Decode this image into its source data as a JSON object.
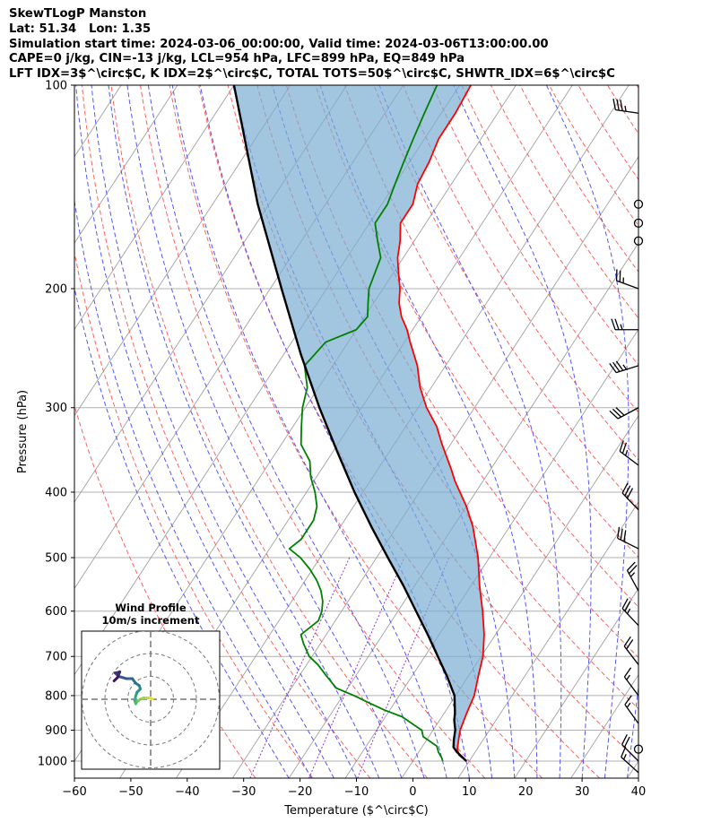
{
  "header": {
    "line1": "SkewTLogP Manston",
    "line2": "Lat: 51.34   Lon: 1.35",
    "line3": "Simulation start time: 2024-03-06_00:00:00, Valid time: 2024-03-06T13:00:00.00",
    "line4": "CAPE=0 j/kg, CIN=-13 j/kg, LCL=954 hPa, LFC=899 hPa, EQ=849 hPa",
    "line5": "LFT IDX=3$^\\circ$C, K IDX=2$^\\circ$C, TOTAL TOTS=50$^\\circ$C, SHWTR_IDX=6$^\\circ$C"
  },
  "chart_data": {
    "type": "line",
    "title": "SkewTLogP Manston",
    "xlabel": "Temperature ($^\\circ$C)",
    "ylabel": "Pressure (hPa)",
    "xlim": [
      -60,
      40
    ],
    "ylim": [
      1050,
      100
    ],
    "skew_offset_c": 34,
    "x_ticks": [
      "−60",
      "−50",
      "−40",
      "−30",
      "−20",
      "−10",
      "0",
      "10",
      "20",
      "30",
      "40"
    ],
    "x_tick_values": [
      -60,
      -50,
      -40,
      -30,
      -20,
      -10,
      0,
      10,
      20,
      30,
      40
    ],
    "y_ticks": [
      "1000",
      "900",
      "800",
      "700",
      "600",
      "500",
      "400",
      "300",
      "200",
      "100"
    ],
    "y_tick_values": [
      1000,
      900,
      800,
      700,
      600,
      500,
      400,
      300,
      200,
      100
    ],
    "colors": {
      "temperature": "#ff0000",
      "dewpoint": "#008000",
      "parcel": "#000000",
      "cape_fill": "#7aaed3",
      "dry_adiabat": "#ff6060",
      "moist_adiabat": "#5555ff",
      "mixing_ratio": "#9933cc",
      "isotherm": "#a0a0a0",
      "grid": "#b0b0b0"
    },
    "series": [
      {
        "name": "Temperature",
        "points": [
          [
            1000,
            9.5
          ],
          [
            980,
            7.5
          ],
          [
            960,
            6.5
          ],
          [
            925,
            5.5
          ],
          [
            900,
            4.8
          ],
          [
            850,
            4.0
          ],
          [
            800,
            3.3
          ],
          [
            750,
            1.8
          ],
          [
            700,
            0.3
          ],
          [
            650,
            -2.0
          ],
          [
            600,
            -5.0
          ],
          [
            550,
            -8.5
          ],
          [
            500,
            -12.0
          ],
          [
            450,
            -16.5
          ],
          [
            420,
            -20.0
          ],
          [
            400,
            -22.8
          ],
          [
            385,
            -25.0
          ],
          [
            370,
            -27.0
          ],
          [
            340,
            -31.5
          ],
          [
            320,
            -34.5
          ],
          [
            300,
            -38.5
          ],
          [
            280,
            -42.0
          ],
          [
            260,
            -45.0
          ],
          [
            240,
            -49.0
          ],
          [
            230,
            -51.0
          ],
          [
            220,
            -53.5
          ],
          [
            210,
            -55.5
          ],
          [
            200,
            -57.0
          ],
          [
            190,
            -59.0
          ],
          [
            180,
            -61.0
          ],
          [
            170,
            -62.5
          ],
          [
            160,
            -64.5
          ],
          [
            150,
            -64.5
          ],
          [
            140,
            -66.0
          ],
          [
            130,
            -66.5
          ],
          [
            120,
            -67.5
          ],
          [
            110,
            -67.5
          ],
          [
            100,
            -68.0
          ]
        ]
      },
      {
        "name": "Dewpoint",
        "points": [
          [
            1000,
            5.3
          ],
          [
            990,
            4.8
          ],
          [
            970,
            3.5
          ],
          [
            950,
            2.5
          ],
          [
            920,
            -1.0
          ],
          [
            900,
            -2.0
          ],
          [
            880,
            -4.5
          ],
          [
            860,
            -7.0
          ],
          [
            840,
            -11.0
          ],
          [
            820,
            -14.5
          ],
          [
            800,
            -18.0
          ],
          [
            780,
            -22.0
          ],
          [
            750,
            -25.0
          ],
          [
            720,
            -28.0
          ],
          [
            700,
            -30.5
          ],
          [
            670,
            -33.0
          ],
          [
            650,
            -34.5
          ],
          [
            620,
            -33.0
          ],
          [
            600,
            -33.5
          ],
          [
            580,
            -34.5
          ],
          [
            560,
            -36.0
          ],
          [
            540,
            -38.0
          ],
          [
            520,
            -40.5
          ],
          [
            500,
            -43.5
          ],
          [
            485,
            -46.5
          ],
          [
            470,
            -45.5
          ],
          [
            440,
            -45.5
          ],
          [
            420,
            -46.5
          ],
          [
            400,
            -48.5
          ],
          [
            380,
            -51.0
          ],
          [
            360,
            -53.0
          ],
          [
            340,
            -56.5
          ],
          [
            320,
            -58.5
          ],
          [
            300,
            -60.5
          ],
          [
            280,
            -62.0
          ],
          [
            260,
            -65.0
          ],
          [
            250,
            -64.5
          ],
          [
            240,
            -64.0
          ],
          [
            230,
            -60.0
          ],
          [
            220,
            -59.5
          ],
          [
            210,
            -61.0
          ],
          [
            200,
            -62.5
          ],
          [
            180,
            -64.0
          ],
          [
            170,
            -66.5
          ],
          [
            160,
            -69.0
          ],
          [
            150,
            -69.0
          ],
          [
            140,
            -70.0
          ],
          [
            130,
            -71.0
          ],
          [
            120,
            -72.0
          ],
          [
            110,
            -73.0
          ],
          [
            100,
            -74.0
          ]
        ]
      },
      {
        "name": "Parcel",
        "points": [
          [
            1000,
            9.5
          ],
          [
            970,
            6.8
          ],
          [
            954,
            5.6
          ],
          [
            930,
            4.8
          ],
          [
            899,
            3.9
          ],
          [
            870,
            2.6
          ],
          [
            849,
            1.9
          ],
          [
            800,
            -0.2
          ],
          [
            750,
            -3.7
          ],
          [
            700,
            -7.7
          ],
          [
            650,
            -12.0
          ],
          [
            600,
            -16.8
          ],
          [
            550,
            -22.0
          ],
          [
            500,
            -28.0
          ],
          [
            450,
            -34.5
          ],
          [
            400,
            -41.5
          ],
          [
            350,
            -49.0
          ],
          [
            300,
            -57.5
          ],
          [
            250,
            -67.0
          ],
          [
            200,
            -78.0
          ],
          [
            150,
            -92.0
          ],
          [
            100,
            -110.0
          ]
        ]
      }
    ],
    "hodograph": {
      "title": "Wind Profile",
      "subtitle": "10m/s increment",
      "ring_step_ms": 10,
      "points_uv": [
        [
          0.8,
          0.2
        ],
        [
          0.0,
          0.5
        ],
        [
          -1.5,
          0.6
        ],
        [
          -3.0,
          0.6
        ],
        [
          -4.5,
          0.0
        ],
        [
          -6.0,
          -1.0
        ],
        [
          -6.5,
          -2.0
        ],
        [
          -7.0,
          -0.5
        ],
        [
          -6.5,
          1.5
        ],
        [
          -6.0,
          3.0
        ],
        [
          -4.5,
          4.5
        ],
        [
          -5.0,
          6.0
        ],
        [
          -6.5,
          7.0
        ],
        [
          -8.0,
          9.0
        ],
        [
          -10.5,
          9.0
        ],
        [
          -14.0,
          10.0
        ],
        [
          -15.5,
          11.5
        ],
        [
          -13.5,
          12.0
        ],
        [
          -14.5,
          9.5
        ],
        [
          -16.0,
          8.0
        ]
      ]
    },
    "wind_barbs": [
      {
        "p": 110,
        "u": -35,
        "v": 5
      },
      {
        "p": 150,
        "u": 0,
        "v": 0
      },
      {
        "p": 160,
        "u": 0,
        "v": 0
      },
      {
        "p": 170,
        "u": 0,
        "v": 0
      },
      {
        "p": 200,
        "u": -22,
        "v": 8
      },
      {
        "p": 230,
        "u": -24,
        "v": 0
      },
      {
        "p": 260,
        "u": -32,
        "v": -10
      },
      {
        "p": 300,
        "u": -28,
        "v": -15
      },
      {
        "p": 365,
        "u": -20,
        "v": 15
      },
      {
        "p": 425,
        "u": -19,
        "v": 20
      },
      {
        "p": 485,
        "u": -28,
        "v": 14
      },
      {
        "p": 560,
        "u": -12,
        "v": 22
      },
      {
        "p": 630,
        "u": -17,
        "v": 18
      },
      {
        "p": 720,
        "u": -13,
        "v": 17
      },
      {
        "p": 800,
        "u": -9,
        "v": 12
      },
      {
        "p": 880,
        "u": -10,
        "v": 14
      },
      {
        "p": 960,
        "u": 0,
        "v": 0
      },
      {
        "p": 1000,
        "u": -14,
        "v": 14
      },
      {
        "p": 1040,
        "u": -10,
        "v": 9
      }
    ]
  }
}
